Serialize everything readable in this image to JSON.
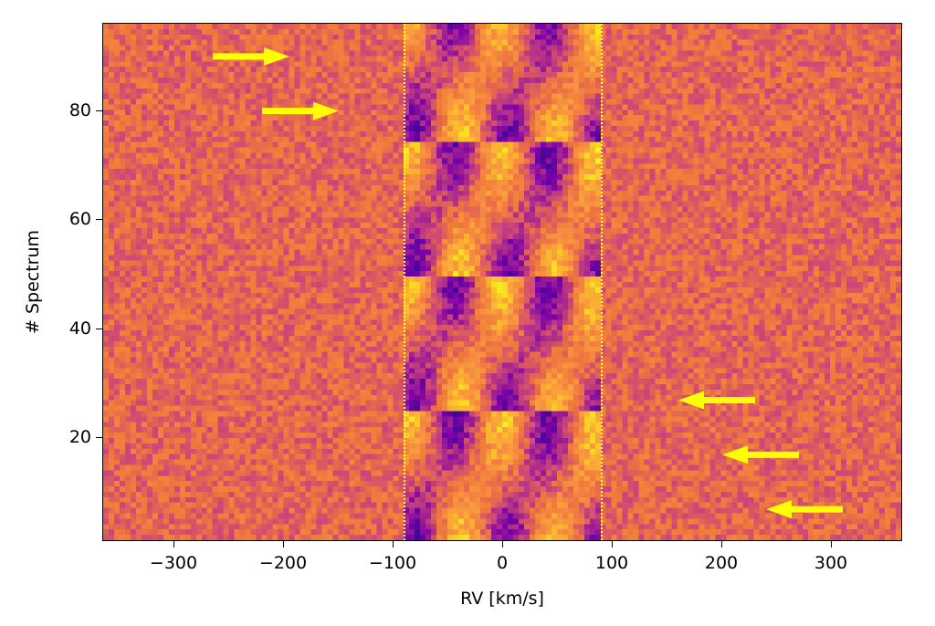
{
  "chart_data": {
    "type": "heatmap",
    "title": "",
    "xlabel": "RV [km/s]",
    "ylabel": "# Spectrum",
    "xlim": [
      -365,
      365
    ],
    "ylim": [
      1,
      96
    ],
    "xticks": [
      -300,
      -200,
      -100,
      0,
      100,
      200,
      300
    ],
    "xtick_labels": [
      "−300",
      "−200",
      "−100",
      "0",
      "100",
      "200",
      "300"
    ],
    "yticks": [
      20,
      40,
      60,
      80
    ],
    "ytick_labels": [
      "20",
      "40",
      "60",
      "80"
    ],
    "colormap": "plasma-like (purple to yellow)",
    "grid": false,
    "legend": null,
    "vertical_dotted_lines": [
      -90,
      90
    ],
    "vertical_line_color": "#ffff33",
    "signal_description": "Diagonal bright/dark streaks between -90 and +90 km/s showing drifting RV features across spectra",
    "annotations": [
      {
        "type": "arrow",
        "direction": "right",
        "x_start": -265,
        "x_end": -195,
        "y": 90,
        "color": "#ffff00"
      },
      {
        "type": "arrow",
        "direction": "right",
        "x_start": -220,
        "x_end": -150,
        "y": 80,
        "color": "#ffff00"
      },
      {
        "type": "arrow",
        "direction": "left",
        "x_start": 230,
        "x_end": 160,
        "y": 27,
        "color": "#ffff00"
      },
      {
        "type": "arrow",
        "direction": "left",
        "x_start": 270,
        "x_end": 200,
        "y": 17,
        "color": "#ffff00"
      },
      {
        "type": "arrow",
        "direction": "left",
        "x_start": 310,
        "x_end": 240,
        "y": 7,
        "color": "#ffff00"
      }
    ],
    "grid_cells": {
      "nx": 146,
      "ny": 96
    }
  }
}
